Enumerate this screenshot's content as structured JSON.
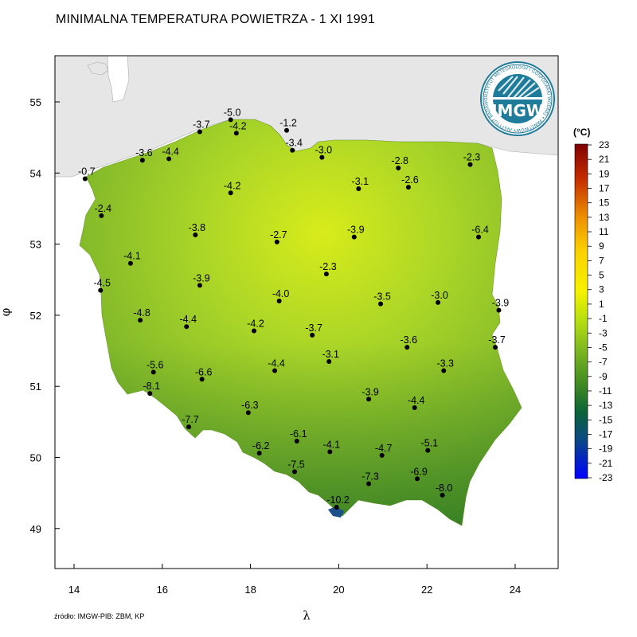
{
  "map": {
    "title": "MINIMALNA TEMPERATURA POWIETRZA - 1 XI 1991",
    "source": "źródło: IMGW-PIB: ZBM, KP",
    "x_axis_label": "λ",
    "y_axis_label": "φ",
    "lon_range": [
      13.5,
      25.0
    ],
    "lat_range": [
      48.5,
      55.65
    ],
    "x_ticks": [
      "14",
      "16",
      "18",
      "20",
      "22",
      "24"
    ],
    "y_ticks": [
      "49",
      "50",
      "51",
      "52",
      "53",
      "54",
      "55"
    ],
    "legend": {
      "unit": "(°C)",
      "values": [
        "23",
        "21",
        "19",
        "17",
        "15",
        "13",
        "11",
        "9",
        "7",
        "5",
        "3",
        "1",
        "-1",
        "-3",
        "-5",
        "-7",
        "-9",
        "-11",
        "-13",
        "-15",
        "-17",
        "-19",
        "-21",
        "-23"
      ],
      "colors": [
        "#7f0000",
        "#a01000",
        "#c42a00",
        "#d94a00",
        "#e56d00",
        "#ee9000",
        "#f5b000",
        "#fbd200",
        "#fde600",
        "#f6f200",
        "#e4f000",
        "#cfe800",
        "#b5de10",
        "#96cc1a",
        "#7ab520",
        "#5ea021",
        "#3e8a22",
        "#1e7330",
        "#0b6438",
        "#0c5a55",
        "#0a4b80",
        "#0837b0",
        "#0520d6",
        "#0000ff"
      ]
    },
    "logo": {
      "text": "IMGW",
      "ring_text": "INSTYTUT METEOROLOGII I GOSPODARKI WODNEJ • PAŃSTWOWY INSTYTUT BADAWCZY",
      "color": "#1e7b9a"
    },
    "station_marker_color": "#000000",
    "land_color": "#8fc632",
    "sea_color": "#e6e6e6",
    "stations": [
      {
        "lon": 17.55,
        "lat": 54.75,
        "value": "-5.0"
      },
      {
        "lon": 16.85,
        "lat": 54.58,
        "value": "-3.7"
      },
      {
        "lon": 17.68,
        "lat": 54.56,
        "value": "-4.2"
      },
      {
        "lon": 18.82,
        "lat": 54.6,
        "value": "-1.2"
      },
      {
        "lon": 18.95,
        "lat": 54.32,
        "value": "-3.4"
      },
      {
        "lon": 15.55,
        "lat": 54.18,
        "value": "-3.6"
      },
      {
        "lon": 16.15,
        "lat": 54.2,
        "value": "-4.4"
      },
      {
        "lon": 14.25,
        "lat": 53.92,
        "value": "-0.7"
      },
      {
        "lon": 19.62,
        "lat": 54.22,
        "value": "-3.0"
      },
      {
        "lon": 21.35,
        "lat": 54.07,
        "value": "-2.8"
      },
      {
        "lon": 22.98,
        "lat": 54.12,
        "value": "-2.3"
      },
      {
        "lon": 17.55,
        "lat": 53.72,
        "value": "-4.2"
      },
      {
        "lon": 20.45,
        "lat": 53.78,
        "value": "-3.1"
      },
      {
        "lon": 21.58,
        "lat": 53.8,
        "value": "-2.6"
      },
      {
        "lon": 14.62,
        "lat": 53.4,
        "value": "-2.4"
      },
      {
        "lon": 16.75,
        "lat": 53.13,
        "value": "-3.8"
      },
      {
        "lon": 18.6,
        "lat": 53.03,
        "value": "-2.7"
      },
      {
        "lon": 20.35,
        "lat": 53.1,
        "value": "-3.9"
      },
      {
        "lon": 23.17,
        "lat": 53.1,
        "value": "-6.4"
      },
      {
        "lon": 15.28,
        "lat": 52.73,
        "value": "-4.1"
      },
      {
        "lon": 19.72,
        "lat": 52.58,
        "value": "-2.3"
      },
      {
        "lon": 14.6,
        "lat": 52.35,
        "value": "-4.5"
      },
      {
        "lon": 16.85,
        "lat": 52.42,
        "value": "-3.9"
      },
      {
        "lon": 18.65,
        "lat": 52.2,
        "value": "-4.0"
      },
      {
        "lon": 20.95,
        "lat": 52.16,
        "value": "-3.5"
      },
      {
        "lon": 22.25,
        "lat": 52.18,
        "value": "-3.0"
      },
      {
        "lon": 23.63,
        "lat": 52.07,
        "value": "-3.9"
      },
      {
        "lon": 15.5,
        "lat": 51.93,
        "value": "-4.8"
      },
      {
        "lon": 16.55,
        "lat": 51.84,
        "value": "-4.4"
      },
      {
        "lon": 18.08,
        "lat": 51.78,
        "value": "-4.2"
      },
      {
        "lon": 19.4,
        "lat": 51.72,
        "value": "-3.7"
      },
      {
        "lon": 21.55,
        "lat": 51.55,
        "value": "-3.6"
      },
      {
        "lon": 23.55,
        "lat": 51.55,
        "value": "-3.7"
      },
      {
        "lon": 19.78,
        "lat": 51.35,
        "value": "-3.1"
      },
      {
        "lon": 15.8,
        "lat": 51.2,
        "value": "-5.6"
      },
      {
        "lon": 16.9,
        "lat": 51.1,
        "value": "-6.6"
      },
      {
        "lon": 18.55,
        "lat": 51.22,
        "value": "-4.4"
      },
      {
        "lon": 22.38,
        "lat": 51.22,
        "value": "-3.3"
      },
      {
        "lon": 15.72,
        "lat": 50.9,
        "value": "-8.1"
      },
      {
        "lon": 20.68,
        "lat": 50.82,
        "value": "-3.9"
      },
      {
        "lon": 21.72,
        "lat": 50.7,
        "value": "-4.4"
      },
      {
        "lon": 17.95,
        "lat": 50.63,
        "value": "-6.3"
      },
      {
        "lon": 16.6,
        "lat": 50.43,
        "value": "-7.7"
      },
      {
        "lon": 19.05,
        "lat": 50.23,
        "value": "-6.1"
      },
      {
        "lon": 19.8,
        "lat": 50.08,
        "value": "-4.1"
      },
      {
        "lon": 20.98,
        "lat": 50.03,
        "value": "-4.7"
      },
      {
        "lon": 22.02,
        "lat": 50.1,
        "value": "-5.1"
      },
      {
        "lon": 18.2,
        "lat": 50.06,
        "value": "-6.2"
      },
      {
        "lon": 19.0,
        "lat": 49.8,
        "value": "-7.5"
      },
      {
        "lon": 20.68,
        "lat": 49.63,
        "value": "-7.3"
      },
      {
        "lon": 21.78,
        "lat": 49.7,
        "value": "-6.9"
      },
      {
        "lon": 22.35,
        "lat": 49.47,
        "value": "-8.0"
      },
      {
        "lon": 19.95,
        "lat": 49.3,
        "value": "-10.2"
      }
    ]
  }
}
